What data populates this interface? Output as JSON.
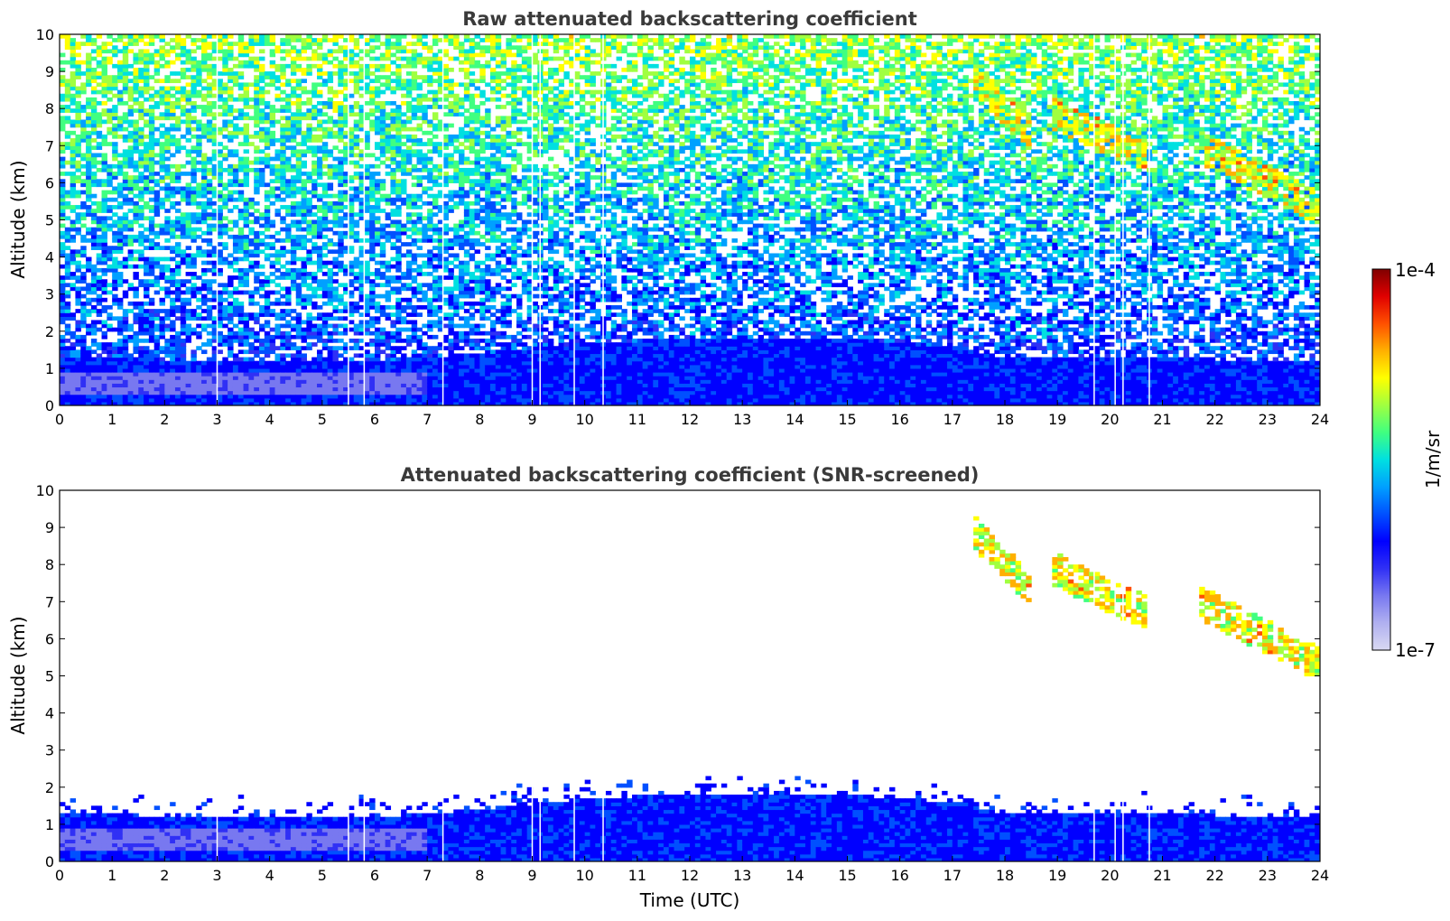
{
  "chart_data": [
    {
      "type": "heatmap",
      "title": "Raw attenuated backscattering coefficient",
      "xlabel": "",
      "ylabel": "Altitude (km)",
      "xlim": [
        0,
        24
      ],
      "ylim": [
        0,
        10
      ],
      "xticks": [
        "0",
        "1",
        "2",
        "3",
        "4",
        "5",
        "6",
        "7",
        "8",
        "9",
        "10",
        "11",
        "12",
        "13",
        "14",
        "15",
        "16",
        "17",
        "18",
        "19",
        "20",
        "21",
        "22",
        "23",
        "24"
      ],
      "yticks": [
        "0",
        "1",
        "2",
        "3",
        "4",
        "5",
        "6",
        "7",
        "8",
        "9",
        "10"
      ],
      "screening": "none",
      "data_gaps_utc": [
        3.0,
        5.5,
        5.8,
        7.3,
        9.0,
        9.15,
        9.8,
        10.35,
        19.7,
        20.1,
        20.25,
        20.75
      ],
      "boundary_layer": [
        {
          "t": 0,
          "z": 1.3
        },
        {
          "t": 3,
          "z": 1.2
        },
        {
          "t": 6,
          "z": 1.2
        },
        {
          "t": 8,
          "z": 1.4
        },
        {
          "t": 10,
          "z": 1.7
        },
        {
          "t": 12,
          "z": 1.8
        },
        {
          "t": 15,
          "z": 1.8
        },
        {
          "t": 17,
          "z": 1.6
        },
        {
          "t": 18,
          "z": 1.3
        },
        {
          "t": 20,
          "z": 1.3
        },
        {
          "t": 24,
          "z": 1.2
        }
      ],
      "clouds": [
        {
          "t0": 17.4,
          "t1": 18.5,
          "z0": 7.3,
          "z1": 8.9
        },
        {
          "t0": 18.9,
          "t1": 20.7,
          "z0": 6.7,
          "z1": 7.9
        },
        {
          "t0": 21.7,
          "t1": 24.0,
          "z0": 5.3,
          "z1": 7.0
        }
      ]
    },
    {
      "type": "heatmap",
      "title": "Attenuated backscattering coefficient (SNR-screened)",
      "xlabel": "Time (UTC)",
      "ylabel": "Altitude (km)",
      "xlim": [
        0,
        24
      ],
      "ylim": [
        0,
        10
      ],
      "xticks": [
        "0",
        "1",
        "2",
        "3",
        "4",
        "5",
        "6",
        "7",
        "8",
        "9",
        "10",
        "11",
        "12",
        "13",
        "14",
        "15",
        "16",
        "17",
        "18",
        "19",
        "20",
        "21",
        "22",
        "23",
        "24"
      ],
      "yticks": [
        "0",
        "1",
        "2",
        "3",
        "4",
        "5",
        "6",
        "7",
        "8",
        "9",
        "10"
      ],
      "screening": "snr",
      "data_gaps_utc": [
        3.0,
        5.5,
        5.8,
        7.3,
        9.0,
        9.15,
        9.8,
        10.35,
        19.7,
        20.1,
        20.25,
        20.75
      ],
      "boundary_layer": [
        {
          "t": 0,
          "z": 1.3
        },
        {
          "t": 3,
          "z": 1.2
        },
        {
          "t": 6,
          "z": 1.2
        },
        {
          "t": 8,
          "z": 1.4
        },
        {
          "t": 10,
          "z": 1.7
        },
        {
          "t": 12,
          "z": 1.8
        },
        {
          "t": 15,
          "z": 1.8
        },
        {
          "t": 17,
          "z": 1.6
        },
        {
          "t": 18,
          "z": 1.3
        },
        {
          "t": 20,
          "z": 1.3
        },
        {
          "t": 24,
          "z": 1.2
        }
      ],
      "clouds": [
        {
          "t0": 17.4,
          "t1": 18.5,
          "z0": 7.3,
          "z1": 8.9
        },
        {
          "t0": 18.9,
          "t1": 20.7,
          "z0": 6.7,
          "z1": 7.9
        },
        {
          "t0": 21.7,
          "t1": 24.0,
          "z0": 5.3,
          "z1": 7.0
        }
      ]
    }
  ],
  "colorbar": {
    "label": "1/m/sr",
    "min_label": "1e-7",
    "max_label": "1e-4",
    "scale": "log",
    "colormap": "jet",
    "stops": [
      "#d9d9f2",
      "#b0b0f0",
      "#7878f0",
      "#3030f5",
      "#0000ff",
      "#0050ff",
      "#00a0ff",
      "#00e0e0",
      "#40ff80",
      "#a0ff40",
      "#ffff00",
      "#ffb000",
      "#ff5000",
      "#e00000",
      "#800000"
    ]
  }
}
